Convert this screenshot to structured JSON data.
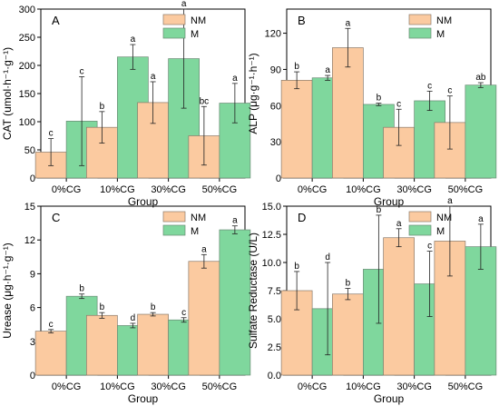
{
  "colors": {
    "NM": "#fbcaa0",
    "M": "#7fd79d"
  },
  "chart_data": [
    {
      "type": "bar",
      "panel": "A",
      "categories": [
        "0%CG",
        "10%CG",
        "30%CG",
        "50%CG"
      ],
      "xlabel": "Group",
      "ylabel": "CAT (umol·h⁻¹·g⁻¹)",
      "ylim": [
        0,
        300
      ],
      "yticks": [
        "0",
        "50",
        "100",
        "150",
        "200",
        "250",
        "300"
      ],
      "legend": "top-right",
      "series": [
        {
          "name": "NM",
          "values": [
            46,
            90,
            134,
            75
          ],
          "errors": [
            24,
            28,
            37,
            52
          ],
          "letters": [
            "c",
            "b",
            "a",
            "bc"
          ]
        },
        {
          "name": "M",
          "values": [
            101,
            215,
            212,
            133
          ],
          "errors": [
            79,
            22,
            88,
            35
          ],
          "letters": [
            "c",
            "a",
            "a",
            "a"
          ]
        }
      ]
    },
    {
      "type": "bar",
      "panel": "B",
      "categories": [
        "0%CG",
        "10%CG",
        "30%CG",
        "50%CG"
      ],
      "xlabel": "Group",
      "ylabel": "ALP (μg·g⁻¹·h⁻¹)",
      "ylim": [
        0,
        140
      ],
      "yticks": [
        "0",
        "30",
        "60",
        "90",
        "120"
      ],
      "legend": "top-right",
      "series": [
        {
          "name": "NM",
          "values": [
            81,
            108,
            42,
            46
          ],
          "errors": [
            7,
            16,
            15,
            22
          ],
          "letters": [
            "b",
            "a",
            "c",
            "c"
          ]
        },
        {
          "name": "M",
          "values": [
            83,
            61,
            64,
            77
          ],
          "errors": [
            2,
            1,
            8,
            2
          ],
          "letters": [
            "a",
            "b",
            "c",
            "ab"
          ]
        }
      ]
    },
    {
      "type": "bar",
      "panel": "C",
      "categories": [
        "0%CG",
        "10%CG",
        "30%CG",
        "50%CG"
      ],
      "xlabel": "Group",
      "ylabel": "Urease (μg·h⁻¹·g⁻¹)",
      "ylim": [
        0,
        15
      ],
      "yticks": [
        "0",
        "3",
        "6",
        "9",
        "12",
        "15"
      ],
      "legend": "top-right",
      "series": [
        {
          "name": "NM",
          "values": [
            3.9,
            5.3,
            5.4,
            10.1
          ],
          "errors": [
            0.15,
            0.25,
            0.15,
            0.6
          ],
          "letters": [
            "c",
            "b",
            "b",
            "a"
          ]
        },
        {
          "name": "M",
          "values": [
            7.0,
            4.4,
            4.9,
            12.9
          ],
          "errors": [
            0.2,
            0.2,
            0.2,
            0.35
          ],
          "letters": [
            "b",
            "d",
            "c",
            "a"
          ]
        }
      ]
    },
    {
      "type": "bar",
      "panel": "D",
      "categories": [
        "0%CG",
        "10%CG",
        "30%CG",
        "50%CG"
      ],
      "xlabel": "Group",
      "ylabel": "Sulfate Reductase (U/L)",
      "ylim": [
        0,
        15
      ],
      "yticks": [
        "0.0",
        "2.5",
        "5.0",
        "7.5",
        "10.0",
        "12.5",
        "15.0"
      ],
      "legend": "top-right",
      "series": [
        {
          "name": "NM",
          "values": [
            7.5,
            7.2,
            12.2,
            11.9
          ],
          "errors": [
            1.7,
            0.5,
            0.8,
            3.1
          ],
          "letters": [
            "b",
            "b",
            "a",
            "a"
          ]
        },
        {
          "name": "M",
          "values": [
            5.9,
            9.4,
            8.1,
            11.4
          ],
          "errors": [
            4.1,
            4.8,
            2.9,
            2.0
          ],
          "letters": [
            "d",
            "b",
            "c",
            "a"
          ]
        }
      ]
    }
  ]
}
